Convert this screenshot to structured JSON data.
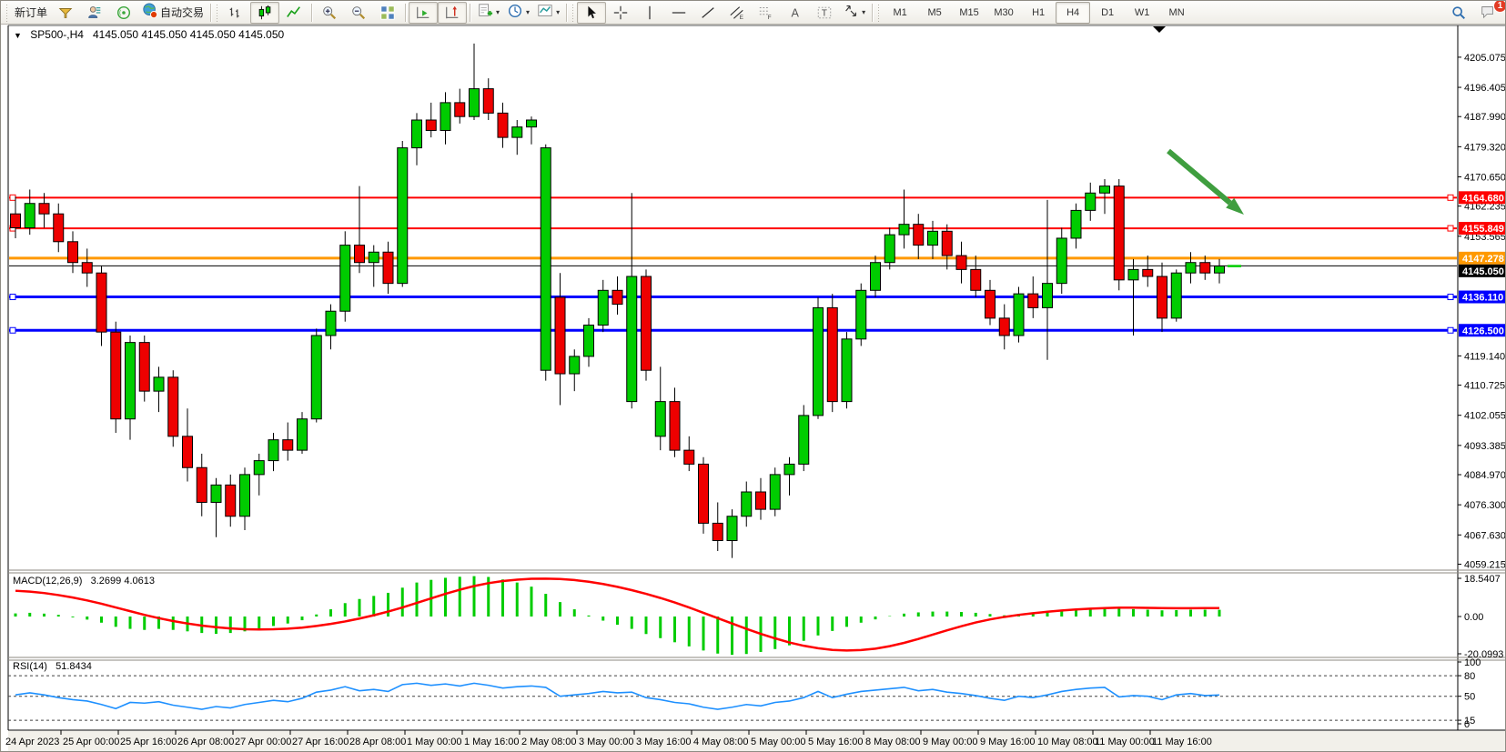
{
  "window": {
    "badge_count": "1"
  },
  "toolbar": {
    "new_order_label": "新订单",
    "auto_trading_label": "自动交易",
    "timeframes": [
      "M1",
      "M5",
      "M15",
      "M30",
      "H1",
      "H4",
      "D1",
      "W1",
      "MN"
    ],
    "active_timeframe": "H4",
    "icons": [
      "trade-funnel-icon",
      "profile-icon",
      "signals-icon",
      "auto-trading-globe-icon",
      "bar-chart-icon",
      "candlestick-chart-icon",
      "line-chart-icon",
      "zoom-in-icon",
      "zoom-out-icon",
      "tile-windows-icon",
      "auto-scroll-icon",
      "chart-shift-icon",
      "add-indicator-icon",
      "periods-clock-icon",
      "template-icon",
      "cursor-icon",
      "crosshair-icon",
      "vertical-line-icon",
      "horizontal-line-icon",
      "trendline-icon",
      "equidistant-channel-icon",
      "fibonacci-icon",
      "text-icon",
      "text-label-icon",
      "arrows-tool-icon",
      "search-icon",
      "chat-icon"
    ]
  },
  "chart": {
    "title_symbol": "SP500-,H4",
    "title_ohlc": "4145.050 4145.050 4145.050 4145.050"
  },
  "macd": {
    "title": "MACD(12,26,9)",
    "value_main": "3.2699",
    "value_signal": "4.0613",
    "axis_labels": [
      "18.5407",
      "0.00",
      "-20.0993"
    ]
  },
  "rsi": {
    "title": "RSI(14)",
    "value": "51.8434",
    "axis_labels": [
      "100",
      "80",
      "50",
      "15",
      "0"
    ]
  },
  "chart_data": {
    "type": "candlestick",
    "symbol": "SP500-",
    "timeframe": "H4",
    "title": "SP500-,H4 4145.050 4145.050 4145.050 4145.050",
    "price_axis_ticks": [
      4205.075,
      4196.405,
      4187.99,
      4179.32,
      4170.65,
      4162.235,
      4153.565,
      4119.14,
      4110.725,
      4102.055,
      4093.385,
      4084.97,
      4076.3,
      4067.63,
      4059.215
    ],
    "price_range": [
      4057.5,
      4209.5
    ],
    "current_price": 4145.05,
    "levels": [
      {
        "price": 4164.68,
        "color": "#ff0000",
        "width": 2,
        "marker": true
      },
      {
        "price": 4155.849,
        "color": "#ff0000",
        "width": 2,
        "marker": true
      },
      {
        "price": 4147.278,
        "color": "#ff9900",
        "width": 3,
        "marker": false
      },
      {
        "price": 4145.05,
        "color": "#000000",
        "width": 1,
        "marker": false
      },
      {
        "price": 4136.11,
        "color": "#0000ff",
        "width": 3,
        "marker": true
      },
      {
        "price": 4126.5,
        "color": "#0000ff",
        "width": 3,
        "marker": true
      }
    ],
    "time_axis_labels": [
      "24 Apr 2023",
      "25 Apr 00:00",
      "25 Apr 16:00",
      "26 Apr 08:00",
      "27 Apr 00:00",
      "27 Apr 16:00",
      "28 Apr 08:00",
      "1 May 00:00",
      "1 May 16:00",
      "2 May 08:00",
      "3 May 00:00",
      "3 May 16:00",
      "4 May 08:00",
      "5 May 00:00",
      "5 May 16:00",
      "8 May 08:00",
      "9 May 00:00",
      "9 May 16:00",
      "10 May 08:00",
      "11 May 00:00",
      "11 May 16:00"
    ],
    "ohlc": [
      [
        4160,
        4165,
        4153,
        4156
      ],
      [
        4156,
        4167,
        4154,
        4163
      ],
      [
        4163,
        4166,
        4156,
        4160
      ],
      [
        4160,
        4163,
        4149,
        4152
      ],
      [
        4152,
        4155,
        4143,
        4146
      ],
      [
        4146,
        4150,
        4139,
        4143
      ],
      [
        4143,
        4145,
        4122,
        4126
      ],
      [
        4126,
        4129,
        4097,
        4101
      ],
      [
        4101,
        4125,
        4095,
        4123
      ],
      [
        4123,
        4125,
        4106,
        4109
      ],
      [
        4109,
        4116,
        4103,
        4113
      ],
      [
        4113,
        4115,
        4093,
        4096
      ],
      [
        4096,
        4104,
        4083,
        4087
      ],
      [
        4087,
        4091,
        4073,
        4077
      ],
      [
        4077,
        4084,
        4067,
        4082
      ],
      [
        4082,
        4085,
        4070,
        4073
      ],
      [
        4073,
        4087,
        4069,
        4085
      ],
      [
        4085,
        4091,
        4079,
        4089
      ],
      [
        4089,
        4097,
        4086,
        4095
      ],
      [
        4095,
        4100,
        4089,
        4092
      ],
      [
        4092,
        4103,
        4091,
        4101
      ],
      [
        4101,
        4127,
        4100,
        4125
      ],
      [
        4125,
        4134,
        4121,
        4132
      ],
      [
        4132,
        4155,
        4129,
        4151
      ],
      [
        4151,
        4168,
        4143,
        4146
      ],
      [
        4146,
        4151,
        4139,
        4149
      ],
      [
        4149,
        4152,
        4137,
        4140
      ],
      [
        4140,
        4181,
        4139,
        4179
      ],
      [
        4179,
        4189,
        4174,
        4187
      ],
      [
        4187,
        4192,
        4182,
        4184
      ],
      [
        4184,
        4195,
        4180,
        4192
      ],
      [
        4192,
        4196,
        4186,
        4188
      ],
      [
        4188,
        4209,
        4187,
        4196
      ],
      [
        4196,
        4199,
        4187,
        4189
      ],
      [
        4189,
        4192,
        4179,
        4182
      ],
      [
        4182,
        4187,
        4177,
        4185
      ],
      [
        4185,
        4188,
        4180,
        4187
      ],
      [
        4115,
        4180,
        4112,
        4179
      ],
      [
        4136,
        4143,
        4105,
        4114
      ],
      [
        4114,
        4121,
        4109,
        4119
      ],
      [
        4119,
        4130,
        4116,
        4128
      ],
      [
        4128,
        4141,
        4126,
        4138
      ],
      [
        4138,
        4142,
        4131,
        4134
      ],
      [
        4106,
        4166,
        4104,
        4142
      ],
      [
        4142,
        4144,
        4112,
        4115
      ],
      [
        4096,
        4116,
        4092,
        4106
      ],
      [
        4106,
        4110,
        4090,
        4092
      ],
      [
        4092,
        4096,
        4086,
        4088
      ],
      [
        4088,
        4090,
        4068,
        4071
      ],
      [
        4071,
        4077,
        4063,
        4066
      ],
      [
        4066,
        4075,
        4061,
        4073
      ],
      [
        4073,
        4083,
        4070,
        4080
      ],
      [
        4080,
        4084,
        4072,
        4075
      ],
      [
        4075,
        4087,
        4073,
        4085
      ],
      [
        4085,
        4090,
        4079,
        4088
      ],
      [
        4088,
        4105,
        4086,
        4102
      ],
      [
        4102,
        4136,
        4101,
        4133
      ],
      [
        4133,
        4137,
        4103,
        4106
      ],
      [
        4106,
        4126,
        4104,
        4124
      ],
      [
        4124,
        4140,
        4122,
        4138
      ],
      [
        4138,
        4148,
        4136,
        4146
      ],
      [
        4146,
        4156,
        4144,
        4154
      ],
      [
        4154,
        4167,
        4150,
        4157
      ],
      [
        4157,
        4160,
        4147,
        4151
      ],
      [
        4151,
        4158,
        4147,
        4155
      ],
      [
        4155,
        4157,
        4144,
        4148
      ],
      [
        4148,
        4152,
        4140,
        4144
      ],
      [
        4144,
        4148,
        4136,
        4138
      ],
      [
        4138,
        4141,
        4128,
        4130
      ],
      [
        4130,
        4134,
        4121,
        4125
      ],
      [
        4125,
        4139,
        4123,
        4137
      ],
      [
        4137,
        4142,
        4130,
        4133
      ],
      [
        4133,
        4164,
        4118,
        4140
      ],
      [
        4140,
        4156,
        4137,
        4153
      ],
      [
        4153,
        4163,
        4150,
        4161
      ],
      [
        4161,
        4169,
        4158,
        4166
      ],
      [
        4166,
        4170,
        4160,
        4168
      ],
      [
        4168,
        4170,
        4138,
        4141
      ],
      [
        4141,
        4147,
        4125,
        4144
      ],
      [
        4144,
        4148,
        4139,
        4142
      ],
      [
        4142,
        4146,
        4126,
        4130
      ],
      [
        4130,
        4144,
        4129,
        4143
      ],
      [
        4143,
        4149,
        4140,
        4146
      ],
      [
        4146,
        4148,
        4141,
        4143
      ],
      [
        4143,
        4147,
        4140,
        4145
      ]
    ],
    "up_color": "#00cc00",
    "down_color": "#ee0000",
    "indicators": {
      "macd": {
        "params": "12,26,9",
        "current_main": 3.2699,
        "current_signal": 4.0613,
        "range": [
          -20.0993,
          18.5407
        ],
        "histogram": [
          1.5,
          1.8,
          1.4,
          0.8,
          -0.4,
          -1.5,
          -3,
          -5,
          -6,
          -6.5,
          -6,
          -6.5,
          -7.2,
          -8,
          -8.4,
          -8,
          -7.2,
          -6,
          -4.6,
          -3.4,
          -1.8,
          1,
          3.5,
          6.5,
          8.5,
          10,
          11.5,
          14,
          16.5,
          17.8,
          18.8,
          19.3,
          19.6,
          19.2,
          18,
          16.5,
          14.5,
          11,
          7,
          3.5,
          0.5,
          -2,
          -4,
          -6,
          -8.5,
          -10.5,
          -12.5,
          -14.5,
          -16.5,
          -18,
          -18.6,
          -18.2,
          -17.2,
          -15.8,
          -14,
          -11.8,
          -9.2,
          -7,
          -5,
          -3,
          -1.4,
          0.2,
          1.4,
          2,
          2.4,
          2.4,
          2.2,
          1.8,
          1.2,
          0.6,
          0.8,
          1.2,
          2,
          2.8,
          3.4,
          3.8,
          4.2,
          4,
          3.6,
          3.3,
          3,
          3.1,
          3.3,
          3.3,
          3.27
        ],
        "signal": [
          12.5,
          12.1,
          11.4,
          10.4,
          9.2,
          7.8,
          6.2,
          4.4,
          2.6,
          0.8,
          -0.8,
          -2.2,
          -3.4,
          -4.4,
          -5.2,
          -5.8,
          -6.2,
          -6.3,
          -6.2,
          -5.9,
          -5.4,
          -4.6,
          -3.6,
          -2.4,
          -1,
          0.6,
          2.4,
          4.4,
          6.6,
          8.8,
          11,
          13,
          14.8,
          16.2,
          17.2,
          17.9,
          18.3,
          18.4,
          18.2,
          17.7,
          16.9,
          15.8,
          14.4,
          12.8,
          11,
          9,
          6.8,
          4.4,
          1.8,
          -0.8,
          -3.4,
          -6,
          -8.4,
          -10.6,
          -12.6,
          -14.2,
          -15.4,
          -16.2,
          -16.5,
          -16.3,
          -15.6,
          -14.4,
          -12.8,
          -10.9,
          -8.8,
          -6.7,
          -4.7,
          -2.9,
          -1.4,
          -0.2,
          0.8,
          1.6,
          2.3,
          2.9,
          3.4,
          3.8,
          4.1,
          4.3,
          4.3,
          4.2,
          4.1,
          4.05,
          4.05,
          4.06,
          4.06
        ]
      },
      "rsi": {
        "period": 14,
        "current": 51.8434,
        "range": [
          0,
          100
        ],
        "level_lines": [
          80,
          50,
          15
        ],
        "values": [
          52,
          55,
          52,
          48,
          45,
          43,
          38,
          32,
          41,
          40,
          42,
          37,
          34,
          31,
          35,
          33,
          38,
          41,
          44,
          42,
          47,
          56,
          59,
          64,
          58,
          60,
          57,
          67,
          69,
          66,
          68,
          65,
          69,
          66,
          62,
          64,
          65,
          63,
          50,
          52,
          54,
          57,
          55,
          56,
          48,
          45,
          41,
          39,
          34,
          31,
          34,
          38,
          36,
          41,
          43,
          48,
          57,
          48,
          53,
          57,
          59,
          61,
          63,
          58,
          60,
          56,
          54,
          51,
          47,
          44,
          50,
          48,
          52,
          57,
          60,
          62,
          63,
          49,
          51,
          50,
          45,
          52,
          54,
          51,
          51.84
        ]
      }
    },
    "annotation_arrow": {
      "from": [
        1283,
        165
      ],
      "to": [
        1366,
        235
      ],
      "color": "#3f9e3f"
    }
  }
}
